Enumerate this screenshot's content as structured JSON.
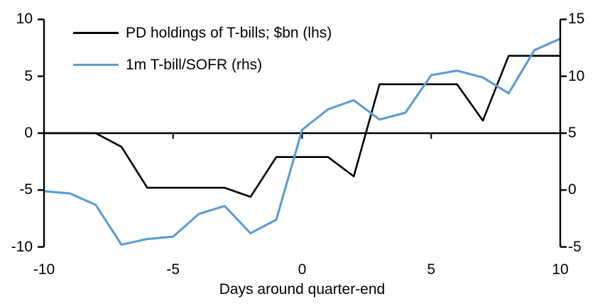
{
  "background_color": "#ffffff",
  "text_color": "#000000",
  "chart_data": {
    "type": "line",
    "title": "",
    "xlabel": "Days around quarter-end",
    "grid": false,
    "legend_position": "top-left-inside",
    "x": [
      -10,
      -9,
      -8,
      -7,
      -6,
      -5,
      -4,
      -3,
      -2,
      -1,
      0,
      1,
      2,
      3,
      4,
      5,
      6,
      7,
      8,
      9,
      10
    ],
    "x_ticks": [
      -10,
      -5,
      0,
      5,
      10
    ],
    "left_axis": {
      "ticks": [
        -10,
        -5,
        0,
        5,
        10
      ],
      "range": [
        -10,
        10
      ]
    },
    "right_axis": {
      "ticks": [
        -5,
        0,
        5,
        10,
        15
      ],
      "range": [
        -5,
        15
      ]
    },
    "series": [
      {
        "name": "PD holdings of T-bills; $bn (lhs)",
        "axis": "left",
        "color": "#000000",
        "values": [
          0,
          0,
          0,
          -1.2,
          -4.8,
          -4.8,
          -4.8,
          -4.8,
          -5.6,
          -2.1,
          -2.1,
          -2.1,
          -3.8,
          4.3,
          4.3,
          4.3,
          4.3,
          1.1,
          6.8,
          6.8,
          6.8
        ]
      },
      {
        "name": "1m T-bill/SOFR (rhs)",
        "axis": "right",
        "color": "#5B9BD5",
        "values": [
          -0.1,
          -0.3,
          -1.3,
          -4.8,
          -4.3,
          -4.1,
          -2.1,
          -1.4,
          -3.8,
          -2.6,
          5.3,
          7.1,
          7.9,
          6.2,
          6.8,
          10.1,
          10.5,
          9.9,
          8.5,
          12.3,
          13.3
        ]
      }
    ]
  }
}
